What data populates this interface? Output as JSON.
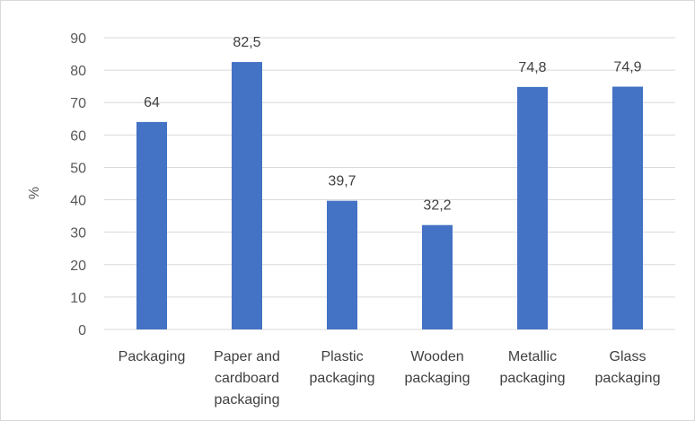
{
  "chart_data": {
    "type": "bar",
    "categories": [
      "Packaging",
      "Paper and cardboard packaging",
      "Plastic packaging",
      "Wooden packaging",
      "Metallic packaging",
      "Glass packaging"
    ],
    "category_lines": [
      [
        "Packaging"
      ],
      [
        "Paper and",
        "cardboard",
        "packaging"
      ],
      [
        "Plastic",
        "packaging"
      ],
      [
        "Wooden",
        "packaging"
      ],
      [
        "Metallic",
        "packaging"
      ],
      [
        "Glass",
        "packaging"
      ]
    ],
    "values": [
      64,
      82.5,
      39.7,
      32.2,
      74.8,
      74.9
    ],
    "data_labels": [
      "64",
      "82,5",
      "39,7",
      "32,2",
      "74,8",
      "74,9"
    ],
    "ylabel": "%",
    "ylim": [
      0,
      90
    ],
    "yticks": [
      0,
      10,
      20,
      30,
      40,
      50,
      60,
      70,
      80,
      90
    ],
    "grid": true,
    "legend": "none",
    "colors": {
      "bar": "#4472c4",
      "grid": "#d9d9d9",
      "axis": "#d9d9d9"
    }
  }
}
